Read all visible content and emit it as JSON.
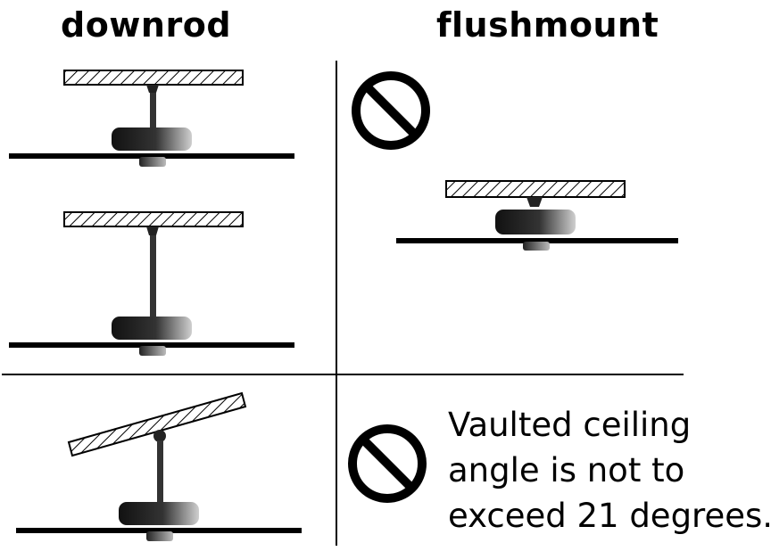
{
  "headings": {
    "left": "downrod",
    "right": "flushmount"
  },
  "note": {
    "lines": [
      "Vaulted ceiling",
      "angle is not to",
      "exceed 21 degrees."
    ]
  },
  "icons": {
    "prohibited": "no-entry-icon"
  },
  "colors": {
    "ink": "#000000",
    "background": "#ffffff"
  }
}
